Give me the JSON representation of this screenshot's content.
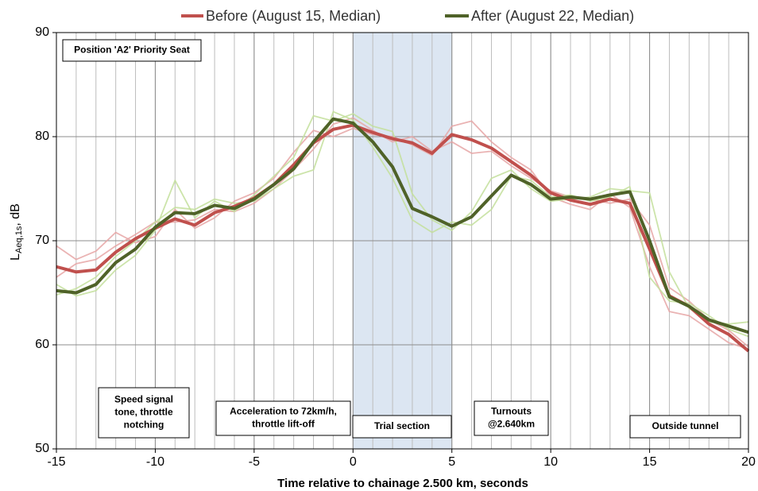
{
  "chart_data": {
    "type": "line",
    "legend_position": "top",
    "grid": true,
    "xlabel": "Time relative to chainage 2.500 km, seconds",
    "ylabel": {
      "main": "L",
      "sub": "Aeq,1s",
      "rest": ", dB"
    },
    "xlim": [
      -15,
      20
    ],
    "ylim": [
      50,
      90
    ],
    "xticks": [
      -15,
      -10,
      -5,
      0,
      5,
      10,
      15,
      20
    ],
    "yticks": [
      50,
      60,
      70,
      80,
      90
    ],
    "xgrid_step": 1,
    "highlight_x": [
      0,
      5
    ],
    "highlight_color": "#dce6f2",
    "x": [
      -15,
      -14,
      -13,
      -12,
      -11,
      -10,
      -9,
      -8,
      -7,
      -6,
      -5,
      -4,
      -3,
      -2,
      -1,
      0,
      1,
      2,
      3,
      4,
      5,
      6,
      7,
      8,
      9,
      10,
      11,
      12,
      13,
      14,
      15,
      16,
      17,
      18,
      19,
      20
    ],
    "series": [
      {
        "color": "#e6a6a6",
        "values": [
          69.5,
          68.2,
          69.0,
          70.8,
          69.8,
          70.4,
          73.0,
          71.2,
          72.2,
          73.8,
          74.6,
          76.0,
          78.5,
          80.6,
          80.0,
          80.8,
          80.2,
          80.0,
          79.2,
          78.2,
          81.0,
          81.5,
          79.5,
          78.0,
          76.8,
          74.2,
          73.5,
          73.0,
          74.5,
          73.2,
          67.5,
          63.2,
          62.8,
          61.5,
          60.2,
          59.6
        ]
      },
      {
        "color": "#e6a6a6",
        "values": [
          66.5,
          67.8,
          68.2,
          69.5,
          70.6,
          71.8,
          71.8,
          72.0,
          73.0,
          72.8,
          73.6,
          75.0,
          76.8,
          78.8,
          81.2,
          81.8,
          80.6,
          79.5,
          80.0,
          78.6,
          79.5,
          78.4,
          78.6,
          77.2,
          76.0,
          74.8,
          74.2,
          74.0,
          73.6,
          74.0,
          71.5,
          65.5,
          64.2,
          62.4,
          61.4,
          59.8
        ]
      },
      {
        "color": "#c3df9b",
        "values": [
          65.8,
          64.7,
          65.2,
          67.2,
          68.6,
          71.0,
          75.8,
          72.2,
          73.8,
          72.8,
          74.4,
          76.2,
          78.0,
          82.0,
          81.5,
          82.2,
          81.0,
          80.5,
          74.5,
          72.0,
          71.0,
          72.8,
          76.0,
          76.8,
          75.0,
          73.8,
          74.0,
          74.2,
          75.0,
          74.8,
          74.6,
          67.0,
          63.5,
          62.2,
          62.0,
          62.2
        ]
      },
      {
        "color": "#c3df9b",
        "values": [
          64.8,
          65.4,
          66.5,
          68.5,
          70.0,
          71.8,
          73.2,
          73.0,
          74.0,
          73.6,
          73.8,
          75.0,
          76.2,
          76.8,
          82.4,
          81.6,
          79.0,
          76.0,
          72.0,
          70.8,
          71.8,
          71.5,
          73.0,
          76.2,
          75.8,
          74.2,
          74.4,
          73.8,
          74.2,
          75.2,
          66.5,
          64.2,
          64.0,
          62.8,
          61.5,
          60.8
        ]
      },
      {
        "name": "Before (August 15, Median)",
        "color": "#c0504d",
        "values": [
          67.5,
          67.0,
          67.2,
          68.9,
          70.2,
          71.2,
          72.1,
          71.5,
          72.7,
          73.3,
          74.1,
          75.4,
          77.3,
          79.4,
          80.7,
          81.1,
          80.4,
          79.8,
          79.4,
          78.4,
          80.2,
          79.7,
          78.9,
          77.6,
          76.3,
          74.6,
          73.9,
          73.5,
          74.0,
          73.6,
          69.2,
          64.7,
          63.7,
          62.0,
          61.0,
          59.4
        ]
      },
      {
        "name": "After (August 22, Median)",
        "color": "#4f6228",
        "values": [
          65.2,
          65.0,
          65.8,
          67.9,
          69.2,
          71.3,
          72.7,
          72.6,
          73.4,
          73.1,
          74.0,
          75.4,
          76.9,
          79.5,
          81.7,
          81.3,
          79.5,
          77.1,
          73.1,
          72.3,
          71.4,
          72.3,
          74.3,
          76.3,
          75.4,
          74.0,
          74.2,
          74.0,
          74.4,
          74.7,
          70.0,
          64.6,
          63.7,
          62.4,
          61.8,
          61.2
        ]
      }
    ],
    "annotations": [
      {
        "lines": [
          "Position 'A2' Priority Seat"
        ]
      },
      {
        "lines": [
          "Speed signal",
          "tone, throttle",
          "notching"
        ]
      },
      {
        "lines": [
          "Acceleration to 72km/h,",
          "throttle lift-off"
        ]
      },
      {
        "lines": [
          "Trial section"
        ]
      },
      {
        "lines": [
          "Turnouts",
          "@2.640km"
        ]
      },
      {
        "lines": [
          "Outside tunnel"
        ]
      }
    ]
  }
}
